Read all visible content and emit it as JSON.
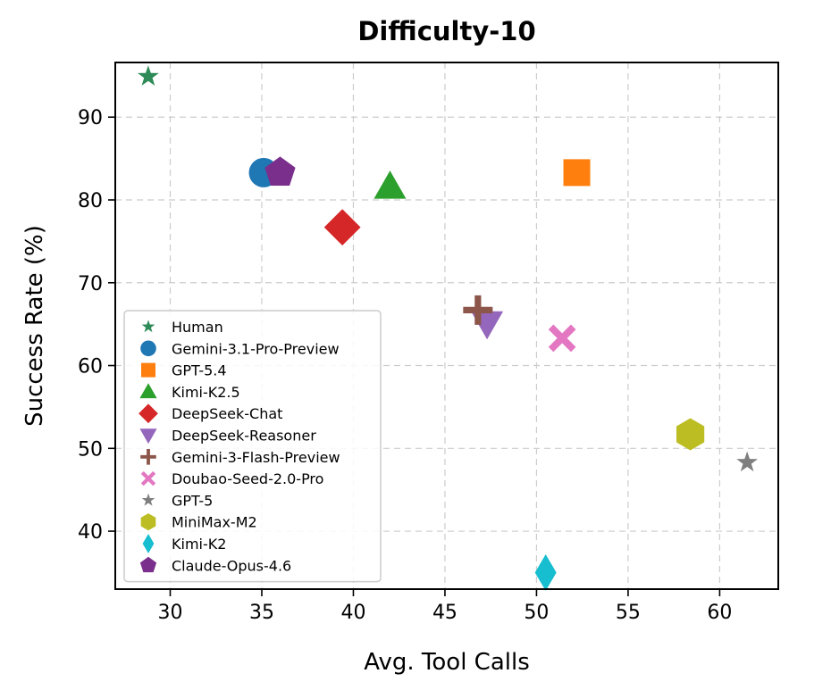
{
  "chart_data": {
    "type": "scatter",
    "title": "Difficulty-10",
    "xlabel": "Avg. Tool Calls",
    "ylabel": "Success Rate (%)",
    "xlim": [
      27.0,
      63.2
    ],
    "ylim": [
      33.0,
      96.6
    ],
    "xticks": [
      30,
      35,
      40,
      45,
      50,
      55,
      60
    ],
    "yticks": [
      40,
      50,
      60,
      70,
      80,
      90
    ],
    "grid": true,
    "legend_position": "lower-left",
    "series": [
      {
        "name": "Human",
        "x": 28.8,
        "y": 94.9,
        "color": "#2e8b57",
        "marker": "star-small"
      },
      {
        "name": "Gemini-3.1-Pro-Preview",
        "x": 35.1,
        "y": 83.3,
        "color": "#1f77b4",
        "marker": "circle"
      },
      {
        "name": "GPT-5.4",
        "x": 52.2,
        "y": 83.3,
        "color": "#ff7f0e",
        "marker": "square"
      },
      {
        "name": "Kimi-K2.5",
        "x": 42.0,
        "y": 81.6,
        "color": "#2ca02c",
        "marker": "triangle-up"
      },
      {
        "name": "DeepSeek-Chat",
        "x": 39.4,
        "y": 76.7,
        "color": "#d62728",
        "marker": "diamond"
      },
      {
        "name": "DeepSeek-Reasoner",
        "x": 47.3,
        "y": 65.1,
        "color": "#9467bd",
        "marker": "triangle-down"
      },
      {
        "name": "Gemini-3-Flash-Preview",
        "x": 46.8,
        "y": 66.7,
        "color": "#8c564b",
        "marker": "plus"
      },
      {
        "name": "Doubao-Seed-2.0-Pro",
        "x": 51.4,
        "y": 63.3,
        "color": "#e377c2",
        "marker": "x"
      },
      {
        "name": "GPT-5",
        "x": 61.5,
        "y": 48.3,
        "color": "#7f7f7f",
        "marker": "star-small"
      },
      {
        "name": "MiniMax-M2",
        "x": 58.4,
        "y": 51.7,
        "color": "#bcbd22",
        "marker": "hexagon"
      },
      {
        "name": "Kimi-K2",
        "x": 50.5,
        "y": 35.0,
        "color": "#17becf",
        "marker": "thin-diamond"
      },
      {
        "name": "Claude-Opus-4.6",
        "x": 36.0,
        "y": 83.3,
        "color": "#7b2f8c",
        "marker": "pentagon"
      }
    ]
  }
}
